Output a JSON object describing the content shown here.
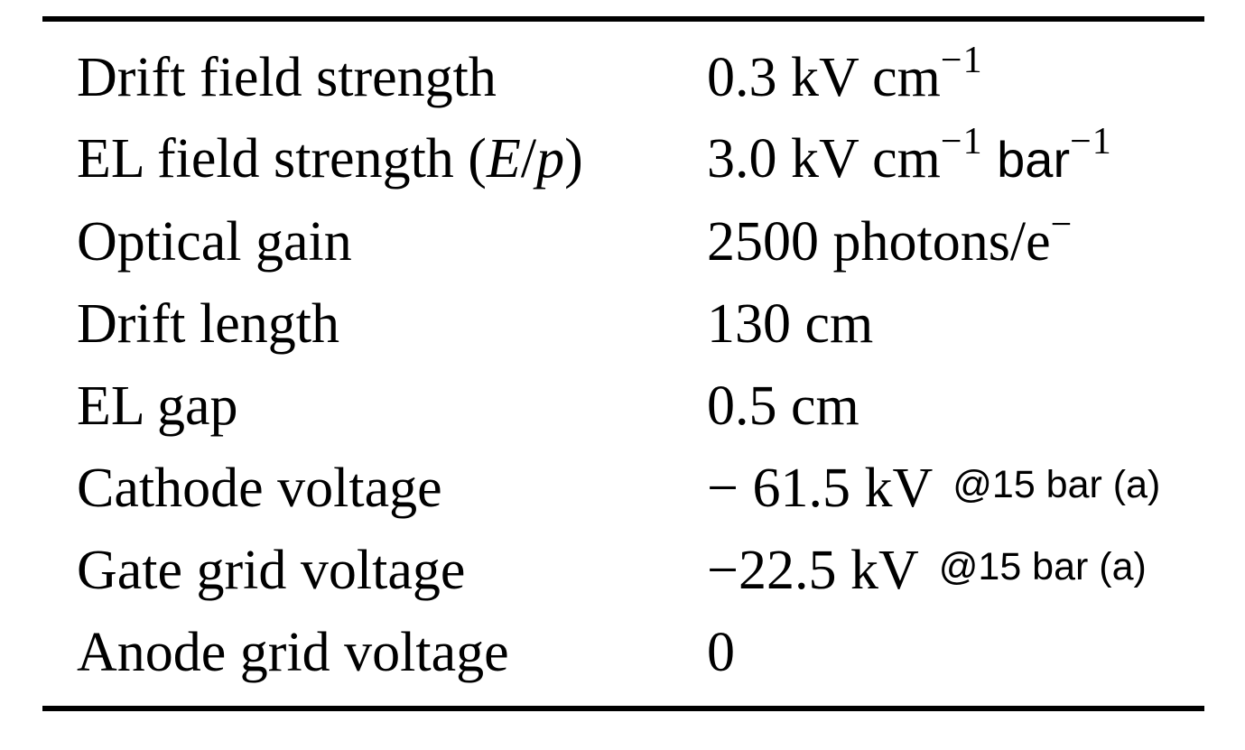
{
  "table": {
    "rows": [
      {
        "param": "Drift field strength",
        "value": "0.3 kV cm",
        "value_sup": "−1"
      },
      {
        "param_main": "EL field strength (",
        "param_E": "E",
        "param_slash": "/",
        "param_p": "p",
        "param_close": ")",
        "value": "3.0 kV cm",
        "value_sup": "−1",
        "value_unit2": " bar",
        "value_sup2": "−1"
      },
      {
        "param": "Optical gain",
        "value": "2500 photons/e",
        "value_sup": "−"
      },
      {
        "param": "Drift length",
        "value": "130 cm"
      },
      {
        "param": "EL gap",
        "value": "0.5 cm"
      },
      {
        "param": "Cathode voltage",
        "value": "− 61.5 kV",
        "note": "@15 bar (a)"
      },
      {
        "param": "Gate grid voltage",
        "value": "−22.5 kV",
        "note": "@15 bar (a)"
      },
      {
        "param": "Anode grid voltage",
        "value": "0"
      }
    ]
  }
}
